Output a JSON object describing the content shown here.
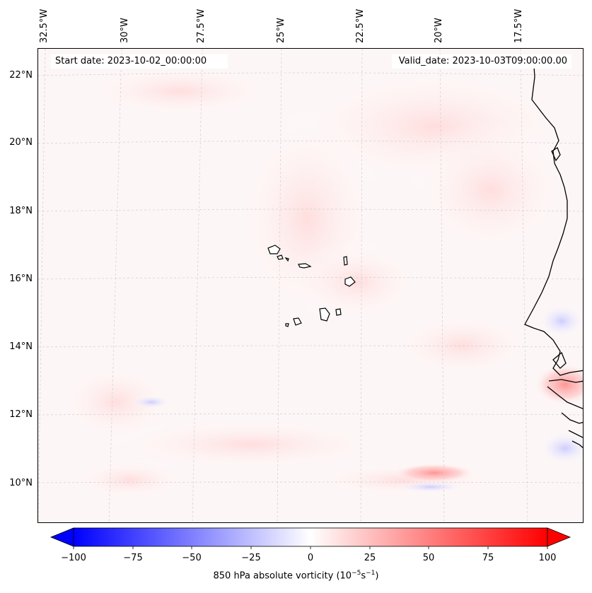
{
  "map": {
    "start_date": "Start date: 2023-10-02_00:00:00",
    "valid_date": "Valid_date: 2023-10-03T09:00:00.00",
    "lon_labels": [
      "32.5°W",
      "30°W",
      "27.5°W",
      "25°W",
      "22.5°W",
      "20°W",
      "17.5°W"
    ],
    "lat_labels": [
      "22°N",
      "20°N",
      "18°N",
      "16°N",
      "14°N",
      "12°N",
      "10°N"
    ]
  },
  "colorbar": {
    "ticks": [
      "−100",
      "−75",
      "−50",
      "−25",
      "0",
      "25",
      "50",
      "75",
      "100"
    ],
    "label": "850 hPa absolute vorticity (10",
    "label_exp1": "−5",
    "label_mid": "s",
    "label_exp2": "−1",
    "label_end": ")",
    "min_color": "#0000ff",
    "mid_color": "#ffffff",
    "max_color": "#ff0000"
  }
}
